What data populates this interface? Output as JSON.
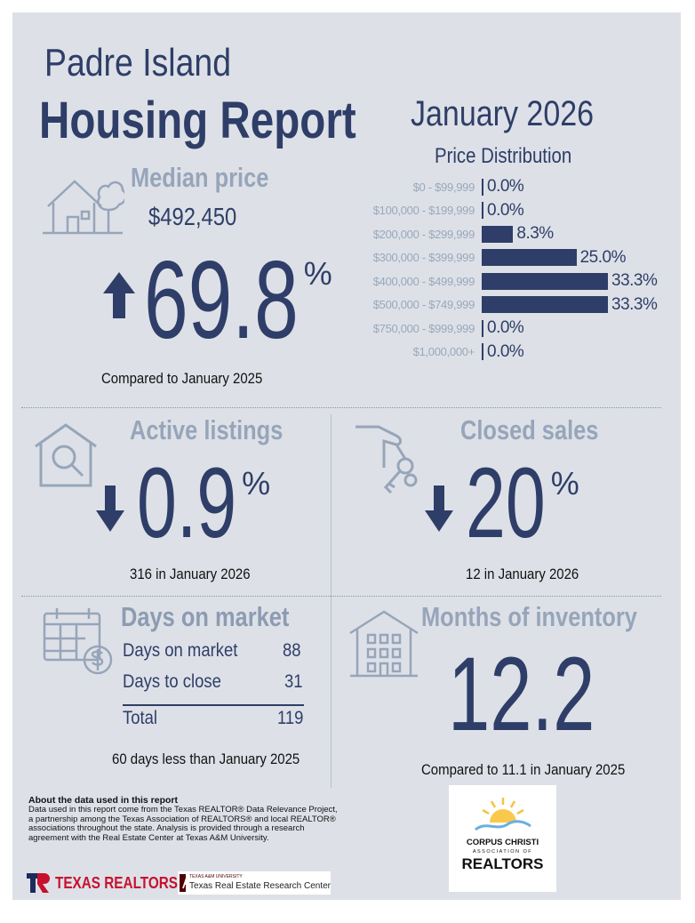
{
  "header": {
    "location": "Padre Island",
    "title": "Housing Report",
    "month": "January 2026"
  },
  "median_price": {
    "label": "Median price",
    "value": "$492,450",
    "change": "69.8",
    "unit": "%",
    "direction": "up",
    "comparison": "Compared to January 2025"
  },
  "chart_data": {
    "type": "bar",
    "orientation": "horizontal",
    "title": "Price Distribution",
    "categories": [
      "$0 - $99,999",
      "$100,000 - $199,999",
      "$200,000 - $299,999",
      "$300,000 - $399,999",
      "$400,000 - $499,999",
      "$500,000 - $749,999",
      "$750,000 - $999,999",
      "$1,000,000+"
    ],
    "values": [
      0.0,
      0.0,
      8.3,
      25.0,
      33.3,
      33.3,
      0.0,
      0.0
    ],
    "labels": [
      "0.0%",
      "0.0%",
      "8.3%",
      "25.0%",
      "33.3%",
      "33.3%",
      "0.0%",
      "0.0%"
    ],
    "bar_color": "#2f3e68"
  },
  "active_listings": {
    "label": "Active listings",
    "change": "0.9",
    "unit": "%",
    "direction": "down",
    "detail": "316 in January 2026"
  },
  "closed_sales": {
    "label": "Closed sales",
    "change": "20",
    "unit": "%",
    "direction": "down",
    "detail": "12 in January 2026"
  },
  "days_on_market": {
    "label": "Days on market",
    "rows": [
      {
        "label": "Days on market",
        "value": "88"
      },
      {
        "label": "Days to close",
        "value": "31"
      }
    ],
    "total": {
      "label": "Total",
      "value": "119"
    },
    "comparison": "60 days less than January 2025"
  },
  "months_inventory": {
    "label": "Months of inventory",
    "value": "12.2",
    "comparison": "Compared to 11.1 in January 2025"
  },
  "footer": {
    "about_title": "About the data used in this report",
    "about_text": "Data used in this report come from the Texas REALTOR® Data Relevance Project, a partnership among the Texas Association of REALTORS® and local REALTOR® associations throughout the state. Analysis is provided through a research agreement with the Real Estate Center at Texas A&M University.",
    "texas_realtors": "TEXAS REALTORS",
    "tamu_small": "TEXAS A&M UNIVERSITY",
    "tamu": "Texas Real Estate Research Center",
    "cc_line1": "CORPUS CHRISTI",
    "cc_line2": "ASSOCIATION OF",
    "cc_line3": "REALTORS"
  },
  "colors": {
    "navy": "#2f3e68",
    "muted": "#97a5ba",
    "background": "#dde1e7"
  }
}
